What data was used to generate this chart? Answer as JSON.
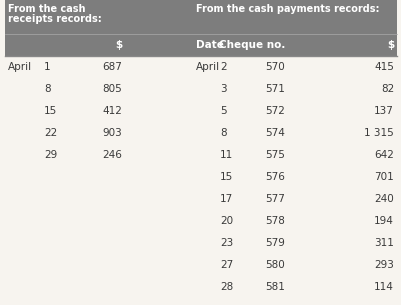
{
  "header_bg": "#7d7d7d",
  "header_text_color": "#ffffff",
  "body_bg": "#f7f4ef",
  "body_text_color": "#3a3a3a",
  "header1_line1": "From the cash",
  "header1_line2": "receipts records:",
  "header2": "From the cash payments records:",
  "col1_label": "$",
  "col2_label": "Date",
  "col3_label": "Cheque no.",
  "col4_label": "$",
  "receipts": [
    [
      "April",
      "1",
      "687"
    ],
    [
      "",
      "8",
      "805"
    ],
    [
      "",
      "15",
      "412"
    ],
    [
      "",
      "22",
      "903"
    ],
    [
      "",
      "29",
      "246"
    ]
  ],
  "payments": [
    [
      "April",
      "2",
      "570",
      "415"
    ],
    [
      "",
      "3",
      "571",
      "82"
    ],
    [
      "",
      "5",
      "572",
      "137"
    ],
    [
      "",
      "8",
      "574",
      "1 315"
    ],
    [
      "",
      "11",
      "575",
      "642"
    ],
    [
      "",
      "15",
      "576",
      "701"
    ],
    [
      "",
      "17",
      "577",
      "240"
    ],
    [
      "",
      "20",
      "578",
      "194"
    ],
    [
      "",
      "23",
      "579",
      "311"
    ],
    [
      "",
      "27",
      "580",
      "293"
    ],
    [
      "",
      "28",
      "581",
      "114"
    ]
  ],
  "fig_w": 4.01,
  "fig_h": 3.05,
  "dpi": 100
}
